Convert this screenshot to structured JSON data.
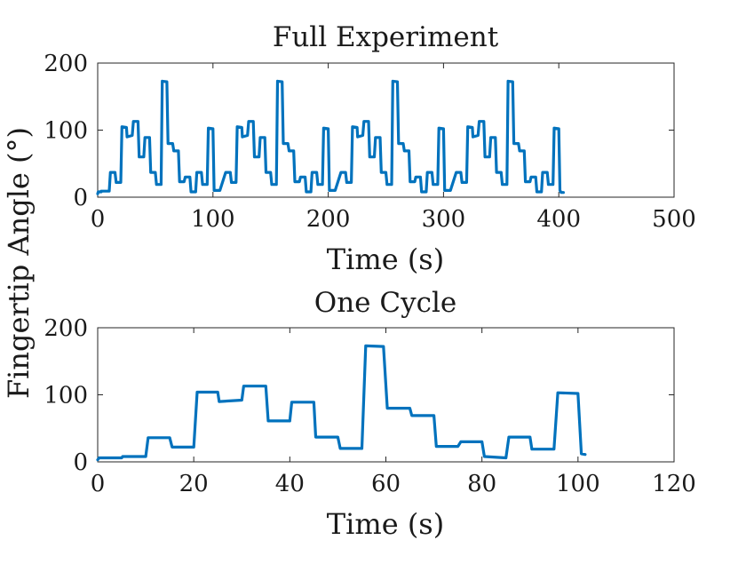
{
  "shared_ylabel": "Fingertip Angle (°)",
  "chart_data": [
    {
      "type": "line",
      "title": "Full Experiment",
      "xlabel": "Time (s)",
      "ylabel": "Fingertip Angle (°)",
      "xlim": [
        0,
        500
      ],
      "ylim": [
        0,
        200
      ],
      "xticks": [
        0,
        100,
        200,
        300,
        400,
        500
      ],
      "yticks": [
        0,
        100,
        200
      ],
      "grid": false,
      "series": [
        {
          "color": "#0072BD",
          "points": [
            [
              0,
              5
            ],
            [
              0.5,
              8
            ],
            [
              3,
              8
            ],
            [
              3,
              9
            ],
            [
              5,
              9
            ],
            [
              5.5,
              9
            ],
            [
              10,
              9
            ],
            [
              11,
              37
            ],
            [
              15,
              37
            ],
            [
              16,
              22
            ],
            [
              20,
              22
            ],
            [
              21,
              105
            ],
            [
              25,
              104
            ],
            [
              25.5,
              90
            ],
            [
              30,
              92
            ],
            [
              31,
              113
            ],
            [
              35,
              113
            ],
            [
              36,
              60
            ],
            [
              40,
              60
            ],
            [
              41,
              89
            ],
            [
              45,
              89
            ],
            [
              46,
              37
            ],
            [
              50,
              37
            ],
            [
              51,
              19
            ],
            [
              55,
              19
            ],
            [
              56,
              173
            ],
            [
              60,
              172
            ],
            [
              61,
              80
            ],
            [
              65,
              80
            ],
            [
              66,
              69
            ],
            [
              70,
              69
            ],
            [
              71,
              23
            ],
            [
              75,
              23
            ],
            [
              76,
              30
            ],
            [
              80,
              30
            ],
            [
              81,
              8
            ],
            [
              85,
              8
            ],
            [
              86,
              37
            ],
            [
              90,
              37
            ],
            [
              91,
              19
            ],
            [
              95,
              19
            ],
            [
              96,
              103
            ],
            [
              100,
              102
            ],
            [
              101,
              10
            ],
            [
              105,
              10
            ],
            [
              106,
              10
            ],
            [
              111,
              37
            ],
            [
              115,
              37
            ],
            [
              116,
              22
            ],
            [
              120,
              22
            ],
            [
              121,
              105
            ],
            [
              125,
              104
            ],
            [
              125.5,
              90
            ],
            [
              130,
              92
            ],
            [
              131,
              113
            ],
            [
              135,
              113
            ],
            [
              136,
              60
            ],
            [
              140,
              60
            ],
            [
              141,
              89
            ],
            [
              145,
              89
            ],
            [
              146,
              37
            ],
            [
              150,
              37
            ],
            [
              151,
              19
            ],
            [
              155,
              19
            ],
            [
              156,
              173
            ],
            [
              160,
              172
            ],
            [
              161,
              80
            ],
            [
              165,
              80
            ],
            [
              166,
              69
            ],
            [
              170,
              69
            ],
            [
              171,
              23
            ],
            [
              175,
              23
            ],
            [
              176,
              30
            ],
            [
              180,
              30
            ],
            [
              181,
              8
            ],
            [
              185,
              8
            ],
            [
              186,
              37
            ],
            [
              190,
              37
            ],
            [
              191,
              19
            ],
            [
              195,
              19
            ],
            [
              196,
              103
            ],
            [
              200,
              102
            ],
            [
              201,
              10
            ],
            [
              205,
              10
            ],
            [
              206,
              10
            ],
            [
              211,
              37
            ],
            [
              215,
              37
            ],
            [
              216,
              22
            ],
            [
              220,
              22
            ],
            [
              221,
              105
            ],
            [
              225,
              104
            ],
            [
              225.5,
              90
            ],
            [
              230,
              92
            ],
            [
              231,
              113
            ],
            [
              235,
              113
            ],
            [
              236,
              60
            ],
            [
              240,
              60
            ],
            [
              241,
              89
            ],
            [
              245,
              89
            ],
            [
              246,
              37
            ],
            [
              250,
              37
            ],
            [
              251,
              19
            ],
            [
              255,
              19
            ],
            [
              256,
              173
            ],
            [
              260,
              172
            ],
            [
              261,
              80
            ],
            [
              265,
              80
            ],
            [
              266,
              69
            ],
            [
              270,
              69
            ],
            [
              271,
              23
            ],
            [
              275,
              23
            ],
            [
              276,
              30
            ],
            [
              280,
              30
            ],
            [
              281,
              8
            ],
            [
              285,
              8
            ],
            [
              286,
              37
            ],
            [
              290,
              37
            ],
            [
              291,
              19
            ],
            [
              295,
              19
            ],
            [
              296,
              103
            ],
            [
              300,
              102
            ],
            [
              301,
              10
            ],
            [
              305,
              10
            ],
            [
              306,
              10
            ],
            [
              311,
              37
            ],
            [
              315,
              37
            ],
            [
              316,
              22
            ],
            [
              320,
              22
            ],
            [
              321,
              105
            ],
            [
              325,
              104
            ],
            [
              325.5,
              90
            ],
            [
              330,
              92
            ],
            [
              331,
              113
            ],
            [
              335,
              113
            ],
            [
              336,
              60
            ],
            [
              340,
              60
            ],
            [
              341,
              89
            ],
            [
              345,
              89
            ],
            [
              346,
              37
            ],
            [
              350,
              37
            ],
            [
              351,
              19
            ],
            [
              355,
              19
            ],
            [
              356,
              173
            ],
            [
              360,
              172
            ],
            [
              361,
              80
            ],
            [
              365,
              80
            ],
            [
              366,
              69
            ],
            [
              370,
              69
            ],
            [
              371,
              23
            ],
            [
              375,
              23
            ],
            [
              376,
              30
            ],
            [
              380,
              30
            ],
            [
              381,
              8
            ],
            [
              385,
              8
            ],
            [
              386,
              37
            ],
            [
              390,
              37
            ],
            [
              391,
              19
            ],
            [
              395,
              19
            ],
            [
              396,
              103
            ],
            [
              400,
              102
            ],
            [
              401,
              10
            ],
            [
              402,
              7
            ],
            [
              404,
              7
            ]
          ]
        }
      ]
    },
    {
      "type": "line",
      "title": "One Cycle",
      "xlabel": "Time (s)",
      "ylabel": "Fingertip Angle (°)",
      "xlim": [
        0,
        120
      ],
      "ylim": [
        0,
        200
      ],
      "xticks": [
        0,
        20,
        40,
        60,
        80,
        100,
        120
      ],
      "yticks": [
        0,
        100,
        200
      ],
      "grid": false,
      "series": [
        {
          "color": "#0072BD",
          "points": [
            [
              0,
              3
            ],
            [
              0.3,
              6
            ],
            [
              5,
              6
            ],
            [
              5.2,
              8
            ],
            [
              10,
              8
            ],
            [
              10.5,
              36
            ],
            [
              15,
              36
            ],
            [
              15.5,
              22
            ],
            [
              20,
              22
            ],
            [
              20.7,
              104
            ],
            [
              25,
              104
            ],
            [
              25.3,
              90
            ],
            [
              30,
              92
            ],
            [
              30.4,
              113
            ],
            [
              35,
              113
            ],
            [
              35.5,
              61
            ],
            [
              40,
              61
            ],
            [
              40.4,
              89
            ],
            [
              45,
              89
            ],
            [
              45.4,
              37
            ],
            [
              50,
              37
            ],
            [
              50.5,
              20
            ],
            [
              55,
              20
            ],
            [
              55.8,
              173
            ],
            [
              59.5,
              172
            ],
            [
              60.3,
              80
            ],
            [
              65,
              80
            ],
            [
              65.4,
              69
            ],
            [
              70,
              69
            ],
            [
              70.5,
              23
            ],
            [
              75,
              23
            ],
            [
              75.6,
              30
            ],
            [
              80,
              30
            ],
            [
              80.5,
              8
            ],
            [
              85,
              6
            ],
            [
              85.6,
              37
            ],
            [
              90,
              37
            ],
            [
              90.4,
              19
            ],
            [
              95,
              19
            ],
            [
              95.8,
              103
            ],
            [
              100,
              102
            ],
            [
              100.7,
              12
            ],
            [
              101.5,
              11
            ]
          ]
        }
      ]
    }
  ]
}
